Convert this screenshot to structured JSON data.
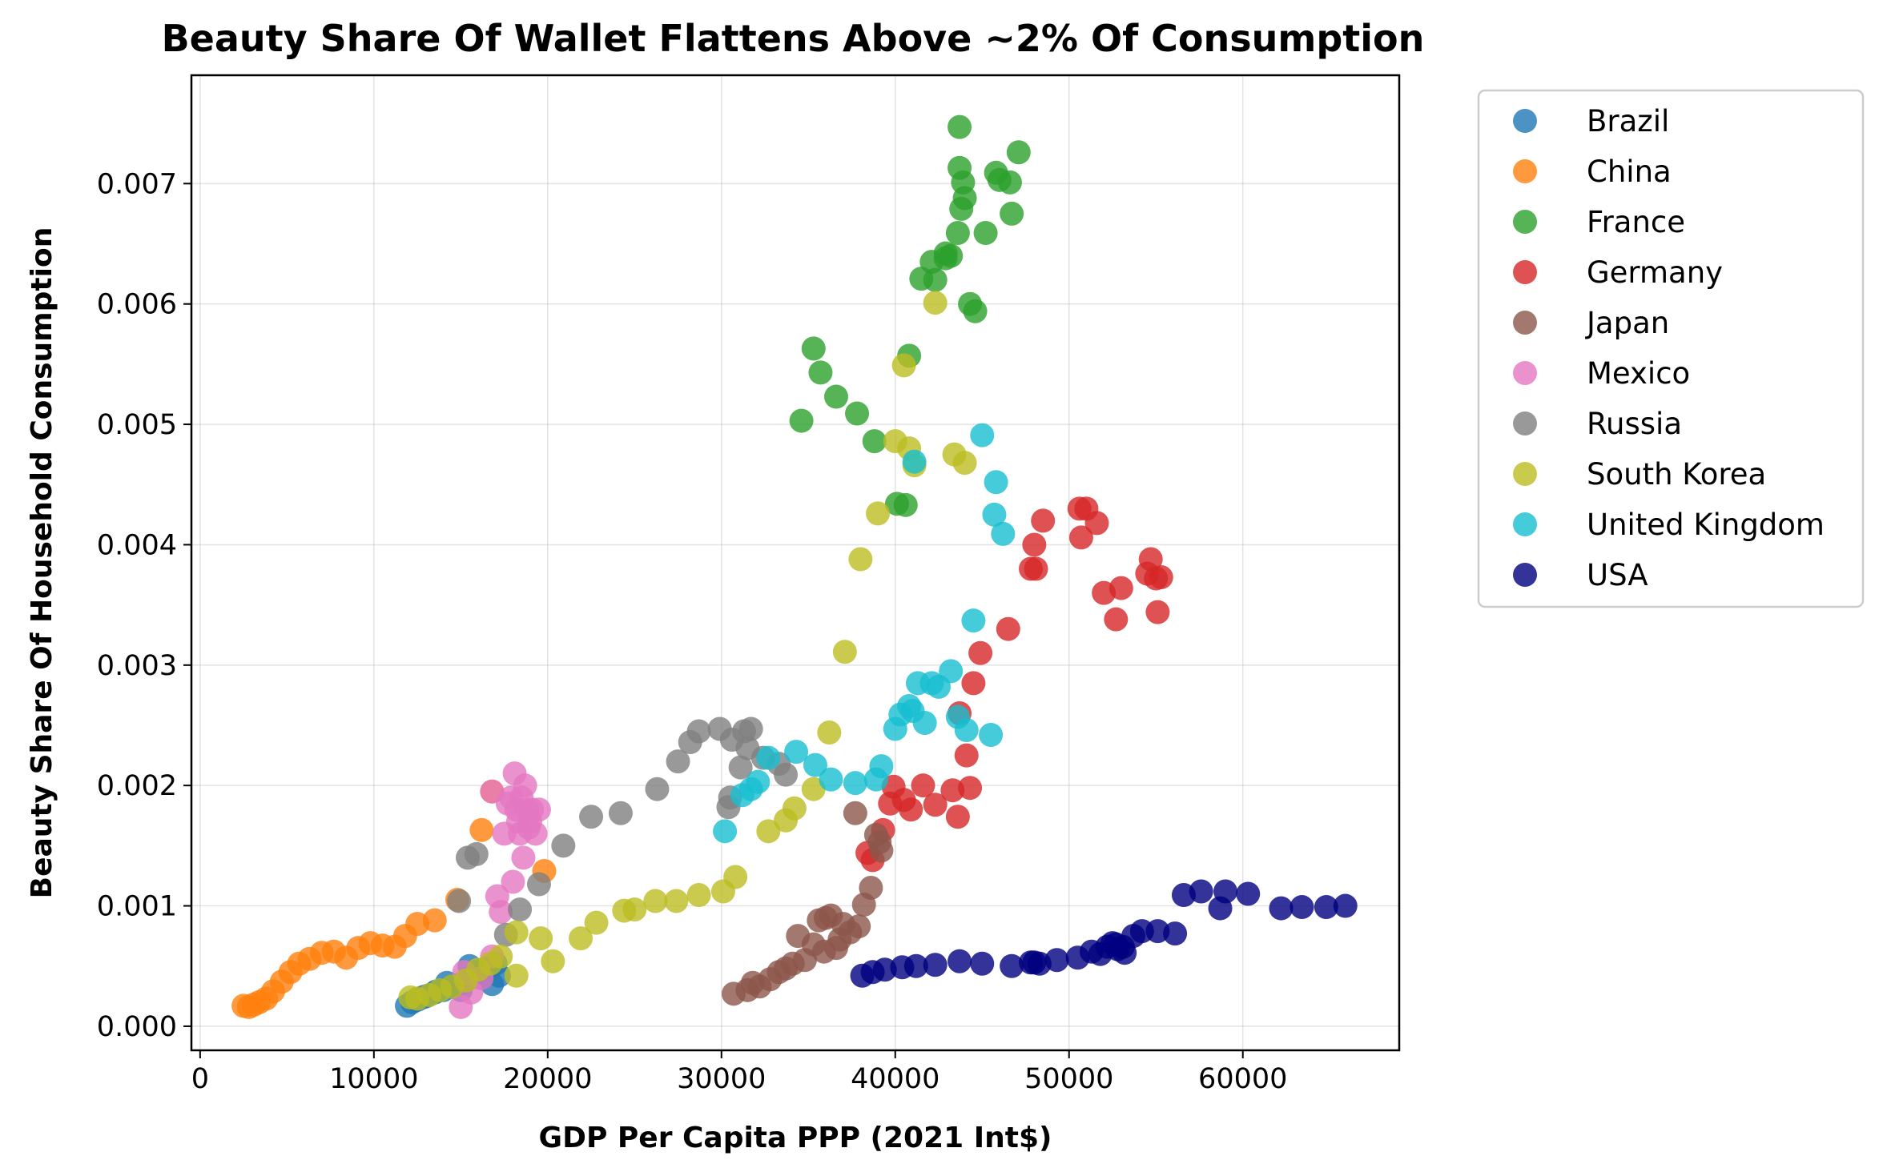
{
  "chart_data": {
    "type": "scatter",
    "title": "Beauty Share Of Wallet Flattens Above ~2% Of Consumption",
    "xlabel": "GDP Per Capita PPP (2021 Int$)",
    "ylabel": "Beauty Share Of Household Consumption",
    "xlim": [
      -500,
      69000
    ],
    "ylim": [
      -0.0002,
      0.0079
    ],
    "xticks": [
      0,
      10000,
      20000,
      30000,
      40000,
      50000,
      60000
    ],
    "xtick_labels": [
      "0",
      "10000",
      "20000",
      "30000",
      "40000",
      "50000",
      "60000"
    ],
    "yticks": [
      0.0,
      0.001,
      0.002,
      0.003,
      0.004,
      0.005,
      0.006,
      0.007
    ],
    "ytick_labels": [
      "0.000",
      "0.001",
      "0.002",
      "0.003",
      "0.004",
      "0.005",
      "0.006",
      "0.007"
    ],
    "grid": true,
    "legend_position": "outside-right-top",
    "series": [
      {
        "name": "Brazil",
        "color": "#1f77b4",
        "points": [
          [
            11900,
            0.00017
          ],
          [
            12200,
            0.0002
          ],
          [
            12500,
            0.00022
          ],
          [
            13000,
            0.00025
          ],
          [
            13500,
            0.00028
          ],
          [
            14000,
            0.0003
          ],
          [
            14500,
            0.00033
          ],
          [
            15000,
            0.00035
          ],
          [
            15500,
            0.0004
          ],
          [
            16000,
            0.00045
          ],
          [
            16500,
            0.00048
          ],
          [
            17000,
            0.00052
          ],
          [
            15000,
            0.0003
          ],
          [
            15500,
            0.0005
          ],
          [
            16200,
            0.0004
          ],
          [
            16800,
            0.00035
          ],
          [
            17200,
            0.00042
          ],
          [
            14200,
            0.00036
          ],
          [
            12800,
            0.00024
          ],
          [
            13600,
            0.00029
          ]
        ]
      },
      {
        "name": "China",
        "color": "#ff7f0e",
        "points": [
          [
            2500,
            0.00017
          ],
          [
            2800,
            0.00016
          ],
          [
            3100,
            0.00018
          ],
          [
            3400,
            0.0002
          ],
          [
            3800,
            0.00023
          ],
          [
            4200,
            0.00029
          ],
          [
            4700,
            0.00037
          ],
          [
            5200,
            0.00045
          ],
          [
            5700,
            0.00052
          ],
          [
            6300,
            0.00056
          ],
          [
            7000,
            0.00061
          ],
          [
            7700,
            0.00062
          ],
          [
            8400,
            0.00057
          ],
          [
            9100,
            0.00065
          ],
          [
            9800,
            0.00069
          ],
          [
            10500,
            0.00067
          ],
          [
            11200,
            0.00066
          ],
          [
            11800,
            0.00075
          ],
          [
            12500,
            0.00085
          ],
          [
            13500,
            0.00088
          ],
          [
            14800,
            0.00105
          ],
          [
            16200,
            0.00163
          ],
          [
            16800,
            0.00195
          ],
          [
            19800,
            0.00129
          ]
        ]
      },
      {
        "name": "France",
        "color": "#2ca02c",
        "points": [
          [
            34600,
            0.00503
          ],
          [
            35300,
            0.00563
          ],
          [
            35700,
            0.00543
          ],
          [
            36600,
            0.00523
          ],
          [
            37800,
            0.00509
          ],
          [
            38800,
            0.00486
          ],
          [
            40100,
            0.00434
          ],
          [
            40600,
            0.00433
          ],
          [
            40800,
            0.00557
          ],
          [
            41500,
            0.00621
          ],
          [
            42100,
            0.00635
          ],
          [
            42300,
            0.0062
          ],
          [
            42900,
            0.00642
          ],
          [
            42900,
            0.00638
          ],
          [
            43200,
            0.0064
          ],
          [
            43600,
            0.00659
          ],
          [
            43700,
            0.00747
          ],
          [
            43700,
            0.00713
          ],
          [
            43800,
            0.00679
          ],
          [
            43900,
            0.00701
          ],
          [
            44000,
            0.00688
          ],
          [
            44300,
            0.006
          ],
          [
            44600,
            0.00594
          ],
          [
            45200,
            0.00659
          ],
          [
            45800,
            0.00709
          ],
          [
            46000,
            0.00703
          ],
          [
            46600,
            0.00701
          ],
          [
            46700,
            0.00675
          ],
          [
            47100,
            0.00726
          ]
        ]
      },
      {
        "name": "Germany",
        "color": "#d62728",
        "points": [
          [
            38400,
            0.00144
          ],
          [
            38700,
            0.00138
          ],
          [
            39300,
            0.00163
          ],
          [
            39700,
            0.00185
          ],
          [
            39900,
            0.00199
          ],
          [
            40500,
            0.00188
          ],
          [
            40900,
            0.0018
          ],
          [
            41600,
            0.002
          ],
          [
            42300,
            0.00184
          ],
          [
            43300,
            0.00196
          ],
          [
            43600,
            0.00174
          ],
          [
            43700,
            0.0026
          ],
          [
            44100,
            0.00225
          ],
          [
            44300,
            0.00198
          ],
          [
            44500,
            0.00285
          ],
          [
            44900,
            0.0031
          ],
          [
            46500,
            0.0033
          ],
          [
            47800,
            0.0038
          ],
          [
            48000,
            0.004
          ],
          [
            48100,
            0.0038
          ],
          [
            48500,
            0.0042
          ],
          [
            50600,
            0.0043
          ],
          [
            50700,
            0.00406
          ],
          [
            51000,
            0.0043
          ],
          [
            51600,
            0.00418
          ],
          [
            52000,
            0.0036
          ],
          [
            52700,
            0.00338
          ],
          [
            53000,
            0.00364
          ],
          [
            54500,
            0.00376
          ],
          [
            54700,
            0.00388
          ],
          [
            55000,
            0.00372
          ],
          [
            55300,
            0.00373
          ],
          [
            55100,
            0.00344
          ]
        ]
      },
      {
        "name": "Japan",
        "color": "#8c564b",
        "points": [
          [
            30700,
            0.00027
          ],
          [
            31500,
            0.0003
          ],
          [
            31800,
            0.00036
          ],
          [
            32200,
            0.00033
          ],
          [
            32800,
            0.00039
          ],
          [
            33300,
            0.00045
          ],
          [
            33700,
            0.00048
          ],
          [
            34100,
            0.00052
          ],
          [
            34400,
            0.00075
          ],
          [
            34800,
            0.00055
          ],
          [
            35300,
            0.00068
          ],
          [
            35600,
            0.00088
          ],
          [
            36000,
            0.0009
          ],
          [
            36300,
            0.00092
          ],
          [
            36600,
            0.00065
          ],
          [
            37000,
            0.00085
          ],
          [
            37400,
            0.00078
          ],
          [
            37700,
            0.00177
          ],
          [
            37900,
            0.00083
          ],
          [
            38200,
            0.00101
          ],
          [
            38600,
            0.00115
          ],
          [
            38900,
            0.00159
          ],
          [
            39100,
            0.00153
          ],
          [
            39200,
            0.00146
          ],
          [
            35900,
            0.00062
          ],
          [
            36800,
            0.00072
          ]
        ]
      },
      {
        "name": "Mexico",
        "color": "#e377c2",
        "points": [
          [
            15000,
            0.00016
          ],
          [
            15200,
            0.00045
          ],
          [
            15600,
            0.00028
          ],
          [
            16200,
            0.0004
          ],
          [
            16800,
            0.00058
          ],
          [
            17100,
            0.00108
          ],
          [
            17300,
            0.00095
          ],
          [
            17500,
            0.0016
          ],
          [
            17700,
            0.00185
          ],
          [
            17900,
            0.0019
          ],
          [
            18100,
            0.0021
          ],
          [
            18200,
            0.0018
          ],
          [
            18300,
            0.0017
          ],
          [
            18400,
            0.0016
          ],
          [
            18500,
            0.0019
          ],
          [
            18600,
            0.0014
          ],
          [
            18700,
            0.002
          ],
          [
            18800,
            0.0018
          ],
          [
            18900,
            0.00165
          ],
          [
            19000,
            0.0017
          ],
          [
            19100,
            0.0018
          ],
          [
            19300,
            0.0016
          ],
          [
            19500,
            0.0018
          ],
          [
            18000,
            0.0012
          ],
          [
            16800,
            0.00195
          ]
        ]
      },
      {
        "name": "Russia",
        "color": "#7f7f7f",
        "points": [
          [
            14900,
            0.00104
          ],
          [
            15400,
            0.0014
          ],
          [
            15900,
            0.00143
          ],
          [
            17600,
            0.00076
          ],
          [
            18400,
            0.00097
          ],
          [
            19500,
            0.00118
          ],
          [
            20900,
            0.0015
          ],
          [
            22500,
            0.00174
          ],
          [
            24200,
            0.00177
          ],
          [
            26300,
            0.00197
          ],
          [
            27500,
            0.0022
          ],
          [
            28200,
            0.00236
          ],
          [
            28700,
            0.00245
          ],
          [
            29900,
            0.00247
          ],
          [
            30400,
            0.00182
          ],
          [
            30500,
            0.0019
          ],
          [
            31100,
            0.00215
          ],
          [
            31300,
            0.00245
          ],
          [
            31700,
            0.00247
          ],
          [
            31500,
            0.00231
          ],
          [
            32400,
            0.00223
          ],
          [
            33300,
            0.00218
          ],
          [
            33700,
            0.00209
          ],
          [
            30600,
            0.00238
          ]
        ]
      },
      {
        "name": "South Korea",
        "color": "#bcbd22",
        "points": [
          [
            12100,
            0.00024
          ],
          [
            12500,
            0.00023
          ],
          [
            13200,
            0.00026
          ],
          [
            13800,
            0.0003
          ],
          [
            14500,
            0.00033
          ],
          [
            15300,
            0.00038
          ],
          [
            16000,
            0.00047
          ],
          [
            16700,
            0.00052
          ],
          [
            17300,
            0.00058
          ],
          [
            18200,
            0.00042
          ],
          [
            18200,
            0.00078
          ],
          [
            19600,
            0.00073
          ],
          [
            20300,
            0.00054
          ],
          [
            21900,
            0.00073
          ],
          [
            22800,
            0.00086
          ],
          [
            24400,
            0.00096
          ],
          [
            25000,
            0.00097
          ],
          [
            26200,
            0.00104
          ],
          [
            27400,
            0.00104
          ],
          [
            28700,
            0.00109
          ],
          [
            30100,
            0.00112
          ],
          [
            30800,
            0.00124
          ],
          [
            32700,
            0.00162
          ],
          [
            33700,
            0.00171
          ],
          [
            34200,
            0.00181
          ],
          [
            35300,
            0.00197
          ],
          [
            36200,
            0.00244
          ],
          [
            37100,
            0.00311
          ],
          [
            38000,
            0.00388
          ],
          [
            39000,
            0.00426
          ],
          [
            40000,
            0.00486
          ],
          [
            40500,
            0.00549
          ],
          [
            40800,
            0.0048
          ],
          [
            41100,
            0.00466
          ],
          [
            42300,
            0.00601
          ],
          [
            43400,
            0.00475
          ],
          [
            44000,
            0.00468
          ]
        ]
      },
      {
        "name": "United Kingdom",
        "color": "#17becf",
        "points": [
          [
            30200,
            0.00162
          ],
          [
            31200,
            0.00192
          ],
          [
            31700,
            0.00197
          ],
          [
            32100,
            0.00203
          ],
          [
            32700,
            0.00223
          ],
          [
            34300,
            0.00228
          ],
          [
            35400,
            0.00217
          ],
          [
            36300,
            0.00205
          ],
          [
            37700,
            0.00202
          ],
          [
            38900,
            0.00205
          ],
          [
            39200,
            0.00216
          ],
          [
            40000,
            0.00247
          ],
          [
            40300,
            0.00259
          ],
          [
            40800,
            0.00266
          ],
          [
            41000,
            0.00262
          ],
          [
            41300,
            0.00285
          ],
          [
            41700,
            0.00252
          ],
          [
            42100,
            0.00285
          ],
          [
            42500,
            0.00282
          ],
          [
            43200,
            0.00295
          ],
          [
            43600,
            0.00257
          ],
          [
            44100,
            0.00246
          ],
          [
            44500,
            0.00337
          ],
          [
            45000,
            0.00491
          ],
          [
            45500,
            0.00242
          ],
          [
            45700,
            0.00425
          ],
          [
            45800,
            0.00452
          ],
          [
            46200,
            0.00409
          ],
          [
            41100,
            0.00469
          ]
        ]
      },
      {
        "name": "USA",
        "color": "#000080",
        "points": [
          [
            38100,
            0.00042
          ],
          [
            38700,
            0.00045
          ],
          [
            39400,
            0.00047
          ],
          [
            40400,
            0.00049
          ],
          [
            41200,
            0.0005
          ],
          [
            42300,
            0.00051
          ],
          [
            43700,
            0.00054
          ],
          [
            45000,
            0.00052
          ],
          [
            46700,
            0.0005
          ],
          [
            47800,
            0.00053
          ],
          [
            48300,
            0.00052
          ],
          [
            49300,
            0.00055
          ],
          [
            50500,
            0.00057
          ],
          [
            51300,
            0.00062
          ],
          [
            51800,
            0.0006
          ],
          [
            52200,
            0.00066
          ],
          [
            52500,
            0.00069
          ],
          [
            52800,
            0.00064
          ],
          [
            53200,
            0.00061
          ],
          [
            53700,
            0.00075
          ],
          [
            54200,
            0.00079
          ],
          [
            55100,
            0.00079
          ],
          [
            56100,
            0.00077
          ],
          [
            56600,
            0.00109
          ],
          [
            57600,
            0.00112
          ],
          [
            58700,
            0.00098
          ],
          [
            59000,
            0.00112
          ],
          [
            60300,
            0.0011
          ],
          [
            62200,
            0.00098
          ],
          [
            63400,
            0.00099
          ],
          [
            64800,
            0.00099
          ],
          [
            65900,
            0.001
          ],
          [
            48000,
            0.00053
          ],
          [
            52700,
            0.00068
          ],
          [
            53100,
            0.00066
          ]
        ]
      }
    ]
  }
}
